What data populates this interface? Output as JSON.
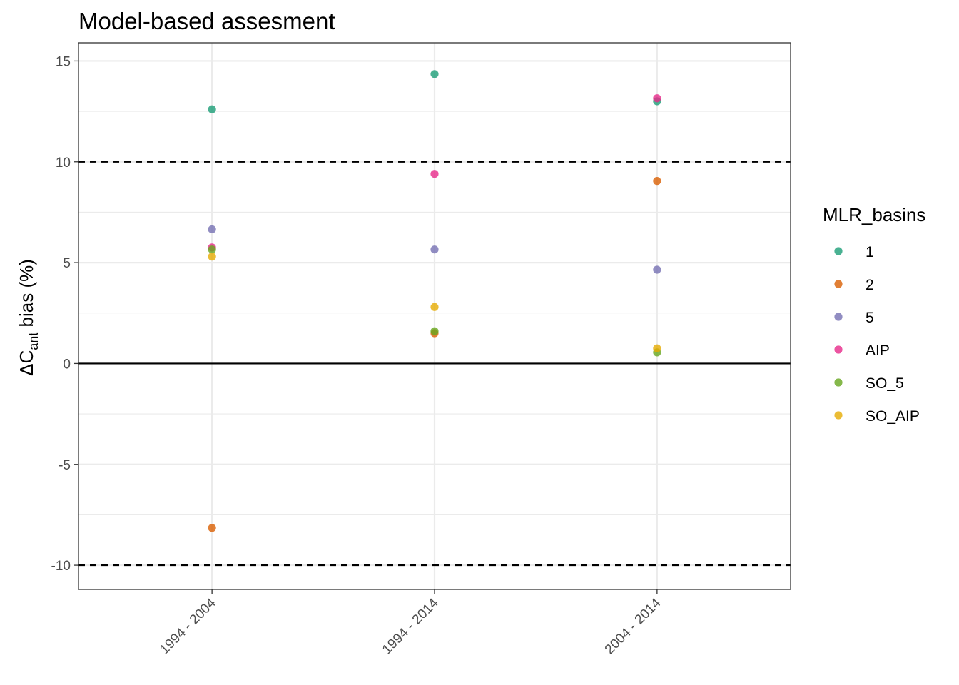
{
  "chart_data": {
    "type": "scatter",
    "title": "Model-based assesment",
    "ylabel": {
      "prefix": "ΔC",
      "subscript": "ant",
      "suffix": " bias (%)"
    },
    "xlabel": "",
    "categories": [
      "1994 - 2004",
      "1994 - 2014",
      "2004 - 2014"
    ],
    "y_ticks": [
      15,
      10,
      5,
      0,
      -5,
      -10
    ],
    "y_tick_labels": [
      "15",
      "10",
      "5",
      "0",
      "-5",
      "-10"
    ],
    "ylim": [
      -11.2,
      15.9
    ],
    "reference_lines": [
      {
        "y": 10,
        "style": "dashed"
      },
      {
        "y": -10,
        "style": "dashed"
      },
      {
        "y": 0,
        "style": "solid"
      }
    ],
    "grid": true,
    "legend": {
      "title": "MLR_basins",
      "position": "right"
    },
    "series": [
      {
        "name": "1",
        "color": "#1b9e77",
        "values": [
          12.6,
          14.35,
          13.0
        ]
      },
      {
        "name": "2",
        "color": "#d95f02",
        "values": [
          -8.15,
          1.5,
          9.05
        ]
      },
      {
        "name": "5",
        "color": "#7570b3",
        "values": [
          6.65,
          5.65,
          4.65
        ]
      },
      {
        "name": "AIP",
        "color": "#e7298a",
        "values": [
          5.75,
          9.4,
          13.15
        ]
      },
      {
        "name": "SO_5",
        "color": "#66a61e",
        "values": [
          5.65,
          1.6,
          0.55
        ]
      },
      {
        "name": "SO_AIP",
        "color": "#e6ab02",
        "values": [
          5.3,
          2.8,
          0.75
        ]
      }
    ]
  }
}
